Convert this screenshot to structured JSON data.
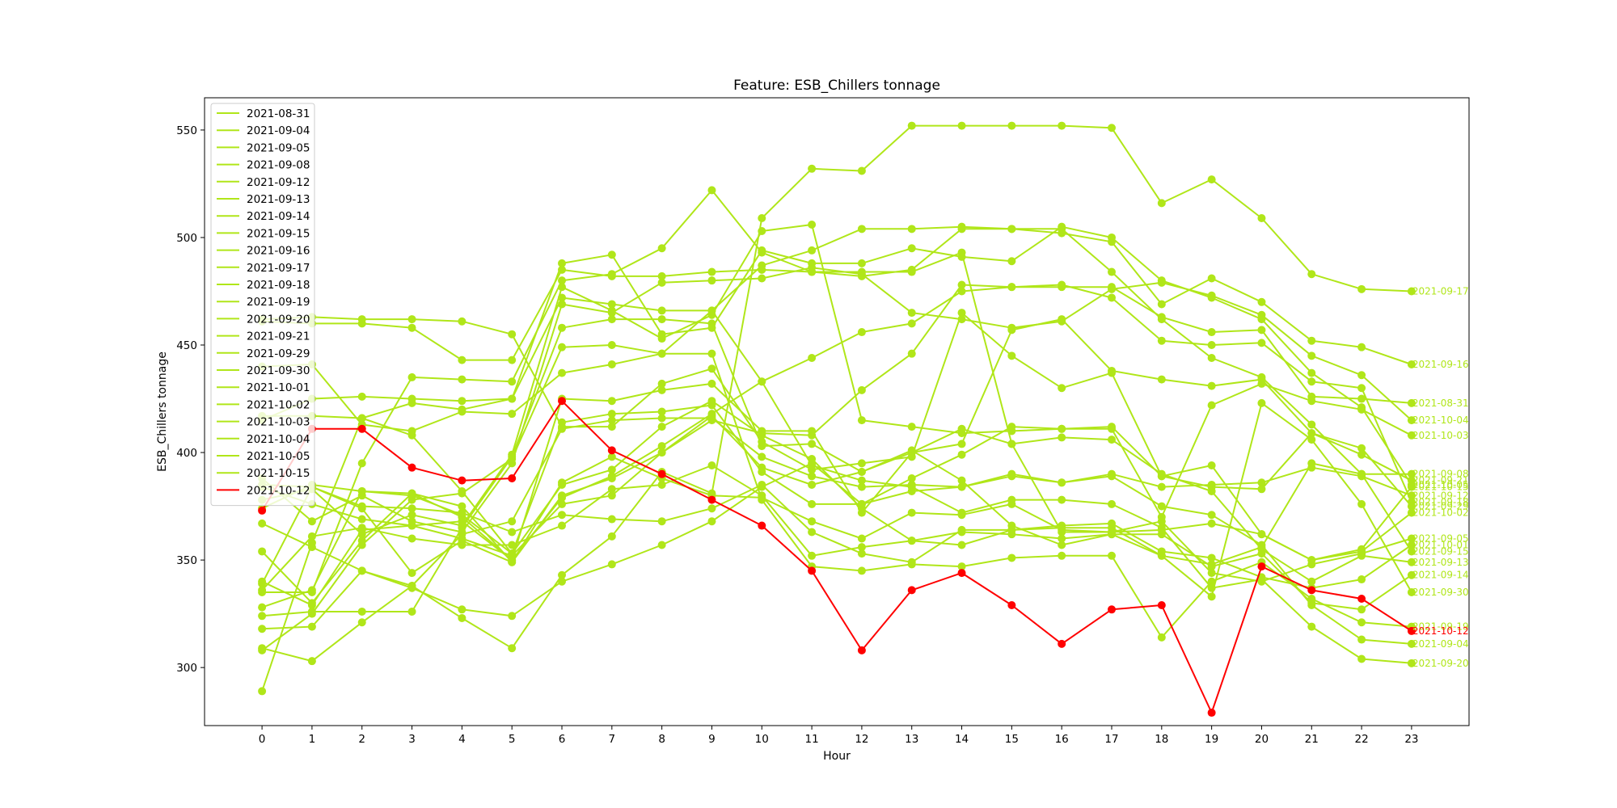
{
  "chart_data": {
    "type": "line",
    "title": "Feature: ESB_Chillers tonnage",
    "xlabel": "Hour",
    "ylabel": "ESB_Chillers tonnage",
    "x": [
      0,
      1,
      2,
      3,
      4,
      5,
      6,
      7,
      8,
      9,
      10,
      11,
      12,
      13,
      14,
      15,
      16,
      17,
      18,
      19,
      20,
      21,
      22,
      23
    ],
    "xlim": [
      -1.15,
      24.15
    ],
    "ylim": [
      273,
      565
    ],
    "yticks": [
      300,
      350,
      400,
      450,
      500,
      550
    ],
    "grid": false,
    "legend_position": "top-left",
    "colors": {
      "base": "#b0e619",
      "highlight": "#ff0000"
    },
    "series": [
      {
        "name": "2021-08-31",
        "color": "#b0e619",
        "values": [
          339,
          384,
          374,
          344,
          359,
          349,
          380,
          388,
          400,
          415,
          409,
          408,
          429,
          446,
          478,
          477,
          477,
          477,
          463,
          456,
          457,
          426,
          425,
          423
        ]
      },
      {
        "name": "2021-09-04",
        "color": "#b0e619",
        "values": [
          318,
          319,
          345,
          337,
          327,
          324,
          340,
          348,
          357,
          368,
          384,
          395,
          376,
          382,
          384,
          389,
          386,
          389,
          375,
          371,
          357,
          329,
          313,
          311
        ]
      },
      {
        "name": "2021-09-05",
        "color": "#b0e619",
        "values": [
          461,
          460,
          460,
          458,
          443,
          443,
          485,
          482,
          482,
          484,
          485,
          484,
          484,
          484,
          493,
          404,
          363,
          363,
          368,
          344,
          340,
          348,
          353,
          360
        ]
      },
      {
        "name": "2021-09-08",
        "color": "#b0e619",
        "values": [
          324,
          326,
          326,
          326,
          365,
          398,
          458,
          462,
          462,
          460,
          403,
          404,
          391,
          401,
          387,
          366,
          357,
          362,
          352,
          348,
          356,
          395,
          390,
          390
        ]
      },
      {
        "name": "2021-09-12",
        "color": "#b0e619",
        "values": [
          309,
          303,
          321,
          338,
          362,
          368,
          411,
          415,
          416,
          416,
          398,
          389,
          384,
          385,
          384,
          390,
          386,
          390,
          384,
          385,
          386,
          393,
          389,
          380
        ]
      },
      {
        "name": "2021-09-13",
        "color": "#b0e619",
        "values": [
          340,
          329,
          364,
          366,
          360,
          352,
          376,
          380,
          400,
          417,
          393,
          385,
          391,
          400,
          411,
          404,
          407,
          406,
          390,
          382,
          355,
          340,
          352,
          349
        ]
      },
      {
        "name": "2021-09-14",
        "color": "#b0e619",
        "values": [
          328,
          336,
          382,
          380,
          371,
          353,
          385,
          392,
          412,
          424,
          408,
          397,
          374,
          359,
          363,
          362,
          360,
          362,
          362,
          347,
          353,
          330,
          327,
          343
        ]
      },
      {
        "name": "2021-09-15",
        "color": "#b0e619",
        "values": [
          335,
          335,
          395,
          435,
          434,
          433,
          480,
          483,
          495,
          522,
          493,
          484,
          482,
          485,
          504,
          504,
          504,
          484,
          462,
          444,
          435,
          413,
          390,
          354
        ]
      },
      {
        "name": "2021-09-16",
        "color": "#b0e619",
        "values": [
          440,
          441,
          413,
          410,
          419,
          418,
          437,
          441,
          446,
          466,
          487,
          494,
          504,
          504,
          505,
          504,
          502,
          498,
          469,
          481,
          470,
          452,
          449,
          441
        ]
      },
      {
        "name": "2021-09-17",
        "color": "#b0e619",
        "values": [
          367,
          356,
          345,
          338,
          323,
          309,
          343,
          361,
          391,
          381,
          509,
          532,
          531,
          552,
          552,
          552,
          552,
          551,
          516,
          527,
          509,
          483,
          476,
          475
        ]
      },
      {
        "name": "2021-09-18",
        "color": "#b0e619",
        "values": [
          354,
          330,
          359,
          381,
          370,
          350,
          379,
          389,
          403,
          418,
          433,
          444,
          456,
          460,
          475,
          477,
          478,
          472,
          452,
          450,
          451,
          433,
          430,
          377
        ]
      },
      {
        "name": "2021-09-19",
        "color": "#b0e619",
        "values": [
          308,
          325,
          357,
          378,
          381,
          397,
          449,
          450,
          446,
          446,
          378,
          347,
          345,
          348,
          347,
          351,
          352,
          352,
          314,
          340,
          349,
          332,
          321,
          319
        ]
      },
      {
        "name": "2021-09-20",
        "color": "#b0e619",
        "values": [
          289,
          358,
          416,
          423,
          420,
          425,
          472,
          469,
          466,
          466,
          433,
          394,
          387,
          384,
          372,
          378,
          378,
          376,
          365,
          337,
          341,
          319,
          304,
          302
        ]
      },
      {
        "name": "2021-09-21",
        "color": "#b0e619",
        "values": [
          417,
          417,
          416,
          408,
          382,
          353,
          414,
          418,
          419,
          422,
          391,
          376,
          376,
          388,
          399,
          412,
          411,
          412,
          389,
          384,
          383,
          409,
          399,
          387
        ]
      },
      {
        "name": "2021-09-29",
        "color": "#b0e619",
        "values": [
          384,
          376,
          369,
          366,
          368,
          350,
          425,
          424,
          429,
          432,
          410,
          410,
          372,
          400,
          404,
          457,
          462,
          438,
          434,
          431,
          434,
          409,
          402,
          375
        ]
      },
      {
        "name": "2021-09-30",
        "color": "#b0e619",
        "values": [
          385,
          384,
          375,
          374,
          372,
          363,
          371,
          369,
          368,
          374,
          385,
          363,
          353,
          349,
          364,
          364,
          365,
          365,
          352,
          333,
          423,
          406,
          376,
          335
        ]
      },
      {
        "name": "2021-10-01",
        "color": "#b0e619",
        "values": [
          336,
          361,
          365,
          360,
          357,
          357,
          366,
          383,
          385,
          394,
          380,
          352,
          356,
          359,
          357,
          364,
          366,
          367,
          354,
          351,
          342,
          337,
          341,
          357
        ]
      },
      {
        "name": "2021-10-02",
        "color": "#b0e619",
        "values": [
          374,
          385,
          382,
          381,
          375,
          349,
          386,
          398,
          388,
          380,
          379,
          368,
          360,
          372,
          371,
          376,
          364,
          363,
          364,
          367,
          362,
          350,
          354,
          372
        ]
      },
      {
        "name": "2021-10-03",
        "color": "#b0e619",
        "values": [
          378,
          383,
          362,
          371,
          366,
          399,
          477,
          466,
          453,
          464,
          503,
          506,
          415,
          412,
          409,
          410,
          411,
          411,
          370,
          422,
          432,
          424,
          420,
          408
        ]
      },
      {
        "name": "2021-10-04",
        "color": "#b0e619",
        "values": [
          388,
          368,
          380,
          368,
          363,
          395,
          469,
          465,
          479,
          480,
          481,
          486,
          483,
          465,
          462,
          458,
          461,
          476,
          479,
          473,
          464,
          445,
          436,
          415
        ]
      },
      {
        "name": "2021-10-05",
        "color": "#b0e619",
        "values": [
          415,
          425,
          426,
          425,
          424,
          425,
          488,
          492,
          455,
          458,
          494,
          488,
          488,
          495,
          491,
          489,
          505,
          500,
          480,
          472,
          462,
          437,
          421,
          385
        ]
      },
      {
        "name": "2021-10-15",
        "color": "#b0e619",
        "values": [
          462,
          463,
          462,
          462,
          461,
          455,
          412,
          412,
          432,
          439,
          405,
          392,
          395,
          398,
          465,
          445,
          430,
          437,
          389,
          394,
          362,
          350,
          355,
          384
        ]
      },
      {
        "name": "2021-10-12",
        "color": "#ff0000",
        "values": [
          373,
          411,
          411,
          393,
          387,
          388,
          424,
          401,
          390,
          378,
          366,
          345,
          308,
          336,
          344,
          329,
          311,
          327,
          329,
          279,
          347,
          336,
          332,
          317
        ]
      }
    ]
  }
}
